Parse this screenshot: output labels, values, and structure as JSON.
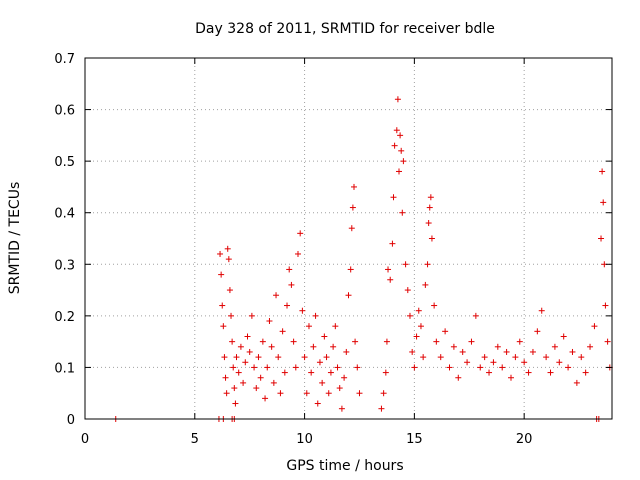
{
  "chart_data": {
    "type": "scatter",
    "title": "Day 328 of 2011, SRMTID for receiver bdle",
    "xlabel": "GPS time / hours",
    "ylabel": "SRMTID / TECUs",
    "xlim": [
      0,
      24
    ],
    "ylim": [
      0,
      0.7
    ],
    "xticks": [
      0,
      5,
      10,
      15,
      20
    ],
    "yticks": [
      0,
      0.1,
      0.2,
      0.3,
      0.4,
      0.5,
      0.6,
      0.7
    ],
    "xtick_labels": [
      "0",
      "5",
      "10",
      "15",
      "20"
    ],
    "ytick_labels": [
      "0",
      "0.1",
      "0.2",
      "0.3",
      "0.4",
      "0.5",
      "0.6",
      "0.7"
    ],
    "grid": true,
    "marker": "+",
    "marker_color": "#e00000",
    "series": [
      {
        "points": [
          [
            1.4,
            0.0
          ],
          [
            6.1,
            0.0
          ],
          [
            6.3,
            0.0
          ],
          [
            6.7,
            0.0
          ],
          [
            6.8,
            0.0
          ],
          [
            6.15,
            0.32
          ],
          [
            6.2,
            0.28
          ],
          [
            6.25,
            0.22
          ],
          [
            6.3,
            0.18
          ],
          [
            6.35,
            0.12
          ],
          [
            6.4,
            0.08
          ],
          [
            6.45,
            0.05
          ],
          [
            6.5,
            0.33
          ],
          [
            6.55,
            0.31
          ],
          [
            6.6,
            0.25
          ],
          [
            6.65,
            0.2
          ],
          [
            6.7,
            0.15
          ],
          [
            6.75,
            0.1
          ],
          [
            6.8,
            0.06
          ],
          [
            6.85,
            0.03
          ],
          [
            6.9,
            0.12
          ],
          [
            7.0,
            0.09
          ],
          [
            7.1,
            0.14
          ],
          [
            7.2,
            0.07
          ],
          [
            7.3,
            0.11
          ],
          [
            7.4,
            0.16
          ],
          [
            7.5,
            0.13
          ],
          [
            7.6,
            0.2
          ],
          [
            7.7,
            0.1
          ],
          [
            7.8,
            0.06
          ],
          [
            7.9,
            0.12
          ],
          [
            8.0,
            0.08
          ],
          [
            8.1,
            0.15
          ],
          [
            8.2,
            0.04
          ],
          [
            8.3,
            0.1
          ],
          [
            8.4,
            0.19
          ],
          [
            8.5,
            0.14
          ],
          [
            8.6,
            0.07
          ],
          [
            8.7,
            0.24
          ],
          [
            8.8,
            0.12
          ],
          [
            8.9,
            0.05
          ],
          [
            9.0,
            0.17
          ],
          [
            9.1,
            0.09
          ],
          [
            9.2,
            0.22
          ],
          [
            9.3,
            0.29
          ],
          [
            9.4,
            0.26
          ],
          [
            9.5,
            0.15
          ],
          [
            9.6,
            0.1
          ],
          [
            9.7,
            0.32
          ],
          [
            9.8,
            0.36
          ],
          [
            9.9,
            0.21
          ],
          [
            10.0,
            0.12
          ],
          [
            10.1,
            0.05
          ],
          [
            10.2,
            0.18
          ],
          [
            10.3,
            0.09
          ],
          [
            10.4,
            0.14
          ],
          [
            10.5,
            0.2
          ],
          [
            10.6,
            0.03
          ],
          [
            10.7,
            0.11
          ],
          [
            10.8,
            0.07
          ],
          [
            10.9,
            0.16
          ],
          [
            11.0,
            0.12
          ],
          [
            11.1,
            0.05
          ],
          [
            11.2,
            0.09
          ],
          [
            11.3,
            0.14
          ],
          [
            11.4,
            0.18
          ],
          [
            11.5,
            0.1
          ],
          [
            11.6,
            0.06
          ],
          [
            11.7,
            0.02
          ],
          [
            11.8,
            0.08
          ],
          [
            11.9,
            0.13
          ],
          [
            12.0,
            0.24
          ],
          [
            12.1,
            0.29
          ],
          [
            12.15,
            0.37
          ],
          [
            12.2,
            0.41
          ],
          [
            12.25,
            0.45
          ],
          [
            12.3,
            0.15
          ],
          [
            12.4,
            0.1
          ],
          [
            12.5,
            0.05
          ],
          [
            13.5,
            0.02
          ],
          [
            13.6,
            0.05
          ],
          [
            13.7,
            0.09
          ],
          [
            13.75,
            0.15
          ],
          [
            13.8,
            0.29
          ],
          [
            13.9,
            0.27
          ],
          [
            14.0,
            0.34
          ],
          [
            14.05,
            0.43
          ],
          [
            14.1,
            0.53
          ],
          [
            14.2,
            0.56
          ],
          [
            14.25,
            0.62
          ],
          [
            14.3,
            0.48
          ],
          [
            14.35,
            0.55
          ],
          [
            14.4,
            0.52
          ],
          [
            14.45,
            0.4
          ],
          [
            14.5,
            0.5
          ],
          [
            14.6,
            0.3
          ],
          [
            14.7,
            0.25
          ],
          [
            14.8,
            0.2
          ],
          [
            14.9,
            0.13
          ],
          [
            15.0,
            0.1
          ],
          [
            15.1,
            0.16
          ],
          [
            15.2,
            0.21
          ],
          [
            15.3,
            0.18
          ],
          [
            15.4,
            0.12
          ],
          [
            15.5,
            0.26
          ],
          [
            15.6,
            0.3
          ],
          [
            15.65,
            0.38
          ],
          [
            15.7,
            0.41
          ],
          [
            15.75,
            0.43
          ],
          [
            15.8,
            0.35
          ],
          [
            15.9,
            0.22
          ],
          [
            16.0,
            0.15
          ],
          [
            16.2,
            0.12
          ],
          [
            16.4,
            0.17
          ],
          [
            16.6,
            0.1
          ],
          [
            16.8,
            0.14
          ],
          [
            17.0,
            0.08
          ],
          [
            17.2,
            0.13
          ],
          [
            17.4,
            0.11
          ],
          [
            17.6,
            0.15
          ],
          [
            17.8,
            0.2
          ],
          [
            18.0,
            0.1
          ],
          [
            18.2,
            0.12
          ],
          [
            18.4,
            0.09
          ],
          [
            18.6,
            0.11
          ],
          [
            18.8,
            0.14
          ],
          [
            19.0,
            0.1
          ],
          [
            19.2,
            0.13
          ],
          [
            19.4,
            0.08
          ],
          [
            19.6,
            0.12
          ],
          [
            19.8,
            0.15
          ],
          [
            20.0,
            0.11
          ],
          [
            20.2,
            0.09
          ],
          [
            20.4,
            0.13
          ],
          [
            20.6,
            0.17
          ],
          [
            20.8,
            0.21
          ],
          [
            21.0,
            0.12
          ],
          [
            21.2,
            0.09
          ],
          [
            21.4,
            0.14
          ],
          [
            21.6,
            0.11
          ],
          [
            21.8,
            0.16
          ],
          [
            22.0,
            0.1
          ],
          [
            22.2,
            0.13
          ],
          [
            22.4,
            0.07
          ],
          [
            22.6,
            0.12
          ],
          [
            22.8,
            0.09
          ],
          [
            23.0,
            0.14
          ],
          [
            23.2,
            0.18
          ],
          [
            23.3,
            0.0
          ],
          [
            23.4,
            0.0
          ],
          [
            23.5,
            0.35
          ],
          [
            23.55,
            0.48
          ],
          [
            23.6,
            0.42
          ],
          [
            23.65,
            0.3
          ],
          [
            23.7,
            0.22
          ],
          [
            23.8,
            0.15
          ],
          [
            23.9,
            0.1
          ]
        ]
      }
    ]
  }
}
